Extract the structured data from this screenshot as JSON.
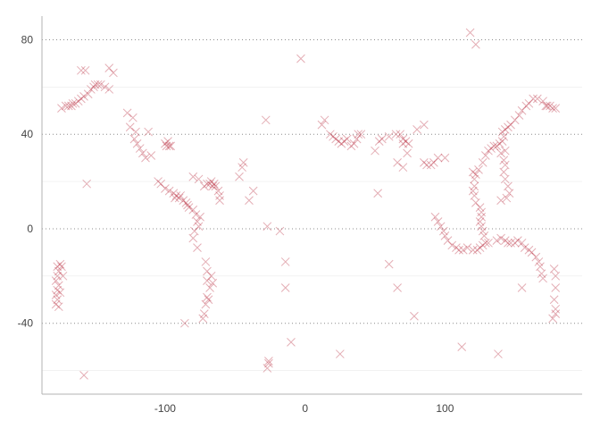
{
  "chart_data": {
    "type": "scatter",
    "title": "",
    "xlabel": "",
    "ylabel": "",
    "xlim": [
      -188,
      198
    ],
    "ylim": [
      -70,
      90
    ],
    "x_ticks": [
      -100,
      0,
      100
    ],
    "y_ticks": [
      -40,
      0,
      40,
      80
    ],
    "x_tick_labels": [
      "-100",
      "0",
      "100"
    ],
    "y_tick_labels": [
      "-40",
      "0",
      "40",
      "80"
    ],
    "grid": "horizontal dotted at major ticks, faint minor lines",
    "marker": "x",
    "color": "#b2182b",
    "points": [
      [
        -174,
        51
      ],
      [
        -171,
        52
      ],
      [
        -169,
        52
      ],
      [
        -167,
        52
      ],
      [
        -166,
        53
      ],
      [
        -164,
        53
      ],
      [
        -162,
        54
      ],
      [
        -160,
        55
      ],
      [
        -158,
        56
      ],
      [
        -155,
        57
      ],
      [
        -153,
        59
      ],
      [
        -151,
        60
      ],
      [
        -150,
        61
      ],
      [
        -148,
        61
      ],
      [
        -146,
        61
      ],
      [
        -143,
        60
      ],
      [
        -140,
        59
      ],
      [
        -140,
        68
      ],
      [
        -137,
        66
      ],
      [
        -157,
        67
      ],
      [
        -160,
        67
      ],
      [
        -121,
        41
      ],
      [
        -122,
        38
      ],
      [
        -120,
        36
      ],
      [
        -118,
        34
      ],
      [
        -116,
        32
      ],
      [
        -125,
        43
      ],
      [
        -127,
        49
      ],
      [
        -123,
        47
      ],
      [
        -112,
        41
      ],
      [
        -110,
        31
      ],
      [
        -114,
        30
      ],
      [
        -100,
        36
      ],
      [
        -98,
        37
      ],
      [
        -97,
        35
      ],
      [
        -99,
        35
      ],
      [
        -96,
        35
      ],
      [
        -105,
        20
      ],
      [
        -103,
        19
      ],
      [
        -100,
        17
      ],
      [
        -97,
        16
      ],
      [
        -94,
        15
      ],
      [
        -92,
        14
      ],
      [
        -90,
        13
      ],
      [
        -93,
        13
      ],
      [
        -89,
        14
      ],
      [
        -87,
        12
      ],
      [
        -85,
        11
      ],
      [
        -84,
        10
      ],
      [
        -83,
        9
      ],
      [
        -80,
        8
      ],
      [
        -78,
        6
      ],
      [
        -75,
        5
      ],
      [
        -77,
        3
      ],
      [
        -76,
        1
      ],
      [
        -79,
        -1
      ],
      [
        -80,
        -4
      ],
      [
        -77,
        -8
      ],
      [
        -68,
        19
      ],
      [
        -66,
        18
      ],
      [
        -65,
        19
      ],
      [
        -64,
        18
      ],
      [
        -67,
        20
      ],
      [
        -62,
        16
      ],
      [
        -61,
        14
      ],
      [
        -61,
        12
      ],
      [
        -70,
        19
      ],
      [
        -72,
        18
      ],
      [
        -76,
        21
      ],
      [
        -80,
        22
      ],
      [
        -71,
        -14
      ],
      [
        -70,
        -18
      ],
      [
        -70,
        -22
      ],
      [
        -68,
        -25
      ],
      [
        -70,
        -29
      ],
      [
        -71,
        -32
      ],
      [
        -72,
        -36
      ],
      [
        -73,
        -38
      ],
      [
        -67,
        -20
      ],
      [
        -66,
        -23
      ],
      [
        -69,
        -30
      ],
      [
        -86,
        -40
      ],
      [
        -44,
        28
      ],
      [
        -45,
        26
      ],
      [
        -47,
        22
      ],
      [
        -37,
        16
      ],
      [
        -40,
        12
      ],
      [
        -27,
        1
      ],
      [
        -26,
        -57
      ],
      [
        -27,
        -59
      ],
      [
        -26,
        -56
      ],
      [
        -10,
        -48
      ],
      [
        -18,
        -1
      ],
      [
        -14,
        -14
      ],
      [
        -14,
        -25
      ],
      [
        -158,
        -62
      ],
      [
        -156,
        19
      ],
      [
        -3,
        72
      ],
      [
        -28,
        46
      ],
      [
        -177,
        -16
      ],
      [
        -176,
        -18
      ],
      [
        -177,
        -20
      ],
      [
        -178,
        -22
      ],
      [
        -176,
        -24
      ],
      [
        -177,
        -26
      ],
      [
        -178,
        -28
      ],
      [
        -177,
        -30
      ],
      [
        -178,
        -32
      ],
      [
        -176,
        -33
      ],
      [
        -174,
        -16
      ],
      [
        -173,
        -20
      ],
      [
        -175,
        -27
      ],
      [
        -175,
        -15
      ],
      [
        12,
        44
      ],
      [
        14,
        46
      ],
      [
        20,
        39
      ],
      [
        22,
        38
      ],
      [
        24,
        37
      ],
      [
        26,
        36
      ],
      [
        28,
        37
      ],
      [
        30,
        38
      ],
      [
        33,
        35
      ],
      [
        35,
        36
      ],
      [
        37,
        38
      ],
      [
        38,
        40
      ],
      [
        18,
        40
      ],
      [
        40,
        40
      ],
      [
        50,
        33
      ],
      [
        53,
        37
      ],
      [
        55,
        38
      ],
      [
        60,
        39
      ],
      [
        65,
        40
      ],
      [
        68,
        40
      ],
      [
        70,
        38
      ],
      [
        72,
        37
      ],
      [
        70,
        36
      ],
      [
        74,
        36
      ],
      [
        66,
        28
      ],
      [
        70,
        26
      ],
      [
        73,
        32
      ],
      [
        52,
        15
      ],
      [
        60,
        -15
      ],
      [
        66,
        -25
      ],
      [
        78,
        -37
      ],
      [
        85,
        28
      ],
      [
        87,
        27
      ],
      [
        90,
        27
      ],
      [
        92,
        28
      ],
      [
        95,
        30
      ],
      [
        80,
        42
      ],
      [
        85,
        44
      ],
      [
        100,
        30
      ],
      [
        93,
        5
      ],
      [
        95,
        3
      ],
      [
        97,
        1
      ],
      [
        99,
        -1
      ],
      [
        100,
        -3
      ],
      [
        102,
        -5
      ],
      [
        105,
        -7
      ],
      [
        108,
        -8
      ],
      [
        110,
        -9
      ],
      [
        113,
        -9
      ],
      [
        116,
        -8
      ],
      [
        120,
        -9
      ],
      [
        123,
        -9
      ],
      [
        125,
        -8
      ],
      [
        127,
        -7
      ],
      [
        129,
        -6
      ],
      [
        131,
        -6
      ],
      [
        128,
        -3
      ],
      [
        127,
        -1
      ],
      [
        126,
        1
      ],
      [
        125,
        3
      ],
      [
        126,
        5
      ],
      [
        126,
        7
      ],
      [
        125,
        9
      ],
      [
        122,
        11
      ],
      [
        121,
        14
      ],
      [
        120,
        16
      ],
      [
        121,
        18
      ],
      [
        121,
        21
      ],
      [
        122,
        23
      ],
      [
        120,
        24
      ],
      [
        124,
        25
      ],
      [
        127,
        28
      ],
      [
        129,
        31
      ],
      [
        131,
        33
      ],
      [
        133,
        34
      ],
      [
        135,
        35
      ],
      [
        137,
        35
      ],
      [
        139,
        36
      ],
      [
        141,
        37
      ],
      [
        142,
        39
      ],
      [
        141,
        41
      ],
      [
        143,
        42
      ],
      [
        145,
        43
      ],
      [
        147,
        44
      ],
      [
        150,
        46
      ],
      [
        153,
        48
      ],
      [
        155,
        50
      ],
      [
        158,
        52
      ],
      [
        160,
        53
      ],
      [
        163,
        55
      ],
      [
        166,
        55
      ],
      [
        170,
        54
      ],
      [
        173,
        52
      ],
      [
        175,
        52
      ],
      [
        177,
        51
      ],
      [
        179,
        51
      ],
      [
        172,
        52
      ],
      [
        143,
        33
      ],
      [
        140,
        32
      ],
      [
        142,
        29
      ],
      [
        143,
        27
      ],
      [
        142,
        24
      ],
      [
        143,
        21
      ],
      [
        145,
        18
      ],
      [
        146,
        15
      ],
      [
        144,
        13
      ],
      [
        140,
        12
      ],
      [
        137,
        -5
      ],
      [
        140,
        -4
      ],
      [
        143,
        -5
      ],
      [
        145,
        -6
      ],
      [
        147,
        -6
      ],
      [
        150,
        -6
      ],
      [
        152,
        -5
      ],
      [
        155,
        -6
      ],
      [
        157,
        -8
      ],
      [
        160,
        -9
      ],
      [
        162,
        -10
      ],
      [
        165,
        -12
      ],
      [
        167,
        -14
      ],
      [
        168,
        -16
      ],
      [
        169,
        -19
      ],
      [
        170,
        -21
      ],
      [
        155,
        -25
      ],
      [
        178,
        -17
      ],
      [
        179,
        -20
      ],
      [
        179,
        -25
      ],
      [
        178,
        -30
      ],
      [
        179,
        -34
      ],
      [
        179,
        -36
      ],
      [
        177,
        -38
      ],
      [
        138,
        -53
      ],
      [
        112,
        -50
      ],
      [
        122,
        78
      ],
      [
        118,
        83
      ],
      [
        25,
        -53
      ]
    ]
  }
}
